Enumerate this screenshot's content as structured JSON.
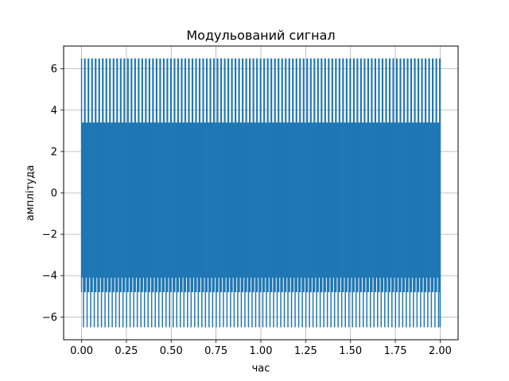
{
  "chart_data": {
    "type": "line",
    "title": "Модульований сигнал",
    "xlabel": "час",
    "ylabel": "амплітуда",
    "xlim": [
      -0.1,
      2.1
    ],
    "ylim": [
      -7.1,
      7.1
    ],
    "xticks": [
      0.0,
      0.25,
      0.5,
      0.75,
      1.0,
      1.25,
      1.5,
      1.75,
      2.0
    ],
    "xtick_labels": [
      "0.00",
      "0.25",
      "0.50",
      "0.75",
      "1.00",
      "1.25",
      "1.50",
      "1.75",
      "2.00"
    ],
    "yticks": [
      -6,
      -4,
      -2,
      0,
      2,
      4,
      6
    ],
    "ytick_labels": [
      "−6",
      "−4",
      "−2",
      "0",
      "2",
      "4",
      "6"
    ],
    "grid": true,
    "series": [
      {
        "color": "#1f77b4",
        "x_range": [
          0.0,
          2.0
        ],
        "cycles": 100,
        "high_peak": 6.5,
        "low_peak": -6.5,
        "inner_high": 3.4,
        "inner_low": -4.8,
        "dense_band": [
          -4.1,
          3.4
        ]
      }
    ]
  }
}
